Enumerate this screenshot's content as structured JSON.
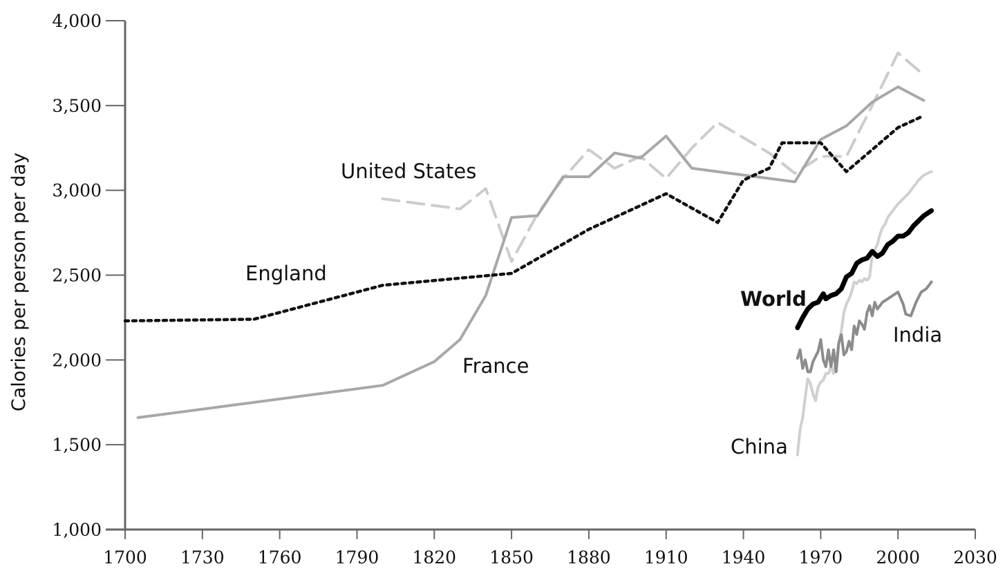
{
  "chart_data": {
    "type": "line",
    "title": "",
    "xlabel": "",
    "ylabel": "Calories per person per day",
    "xlim": [
      1700,
      2030
    ],
    "ylim": [
      1000,
      4000
    ],
    "x_ticks": [
      1700,
      1730,
      1760,
      1790,
      1820,
      1850,
      1880,
      1910,
      1940,
      1970,
      2000,
      2030
    ],
    "y_ticks": [
      1000,
      1500,
      2000,
      2500,
      3000,
      3500,
      4000
    ],
    "y_tick_labels": [
      "1,000",
      "1,500",
      "2,000",
      "2,500",
      "3,000",
      "3,500",
      "4,000"
    ],
    "grid": false,
    "legend": "none",
    "series": [
      {
        "name": "England",
        "color": "#111111",
        "style": "dotted",
        "points": [
          [
            1700,
            2230
          ],
          [
            1750,
            2240
          ],
          [
            1800,
            2440
          ],
          [
            1850,
            2510
          ],
          [
            1880,
            2770
          ],
          [
            1910,
            2980
          ],
          [
            1930,
            2810
          ],
          [
            1940,
            3060
          ],
          [
            1950,
            3130
          ],
          [
            1955,
            3280
          ],
          [
            1965,
            3280
          ],
          [
            1970,
            3280
          ],
          [
            1980,
            3110
          ],
          [
            2000,
            3370
          ],
          [
            2010,
            3440
          ]
        ]
      },
      {
        "name": "France",
        "color": "#a8a8a8",
        "style": "solid",
        "points": [
          [
            1705,
            1660
          ],
          [
            1800,
            1850
          ],
          [
            1820,
            1990
          ],
          [
            1830,
            2120
          ],
          [
            1840,
            2380
          ],
          [
            1850,
            2840
          ],
          [
            1860,
            2850
          ],
          [
            1870,
            3080
          ],
          [
            1880,
            3080
          ],
          [
            1890,
            3220
          ],
          [
            1900,
            3190
          ],
          [
            1910,
            3320
          ],
          [
            1920,
            3130
          ],
          [
            1960,
            3050
          ],
          [
            1970,
            3300
          ],
          [
            1980,
            3380
          ],
          [
            1990,
            3520
          ],
          [
            2000,
            3610
          ],
          [
            2010,
            3530
          ]
        ]
      },
      {
        "name": "United States",
        "color": "#cccccc",
        "style": "dashed",
        "points": [
          [
            1800,
            2950
          ],
          [
            1830,
            2890
          ],
          [
            1840,
            3010
          ],
          [
            1850,
            2580
          ],
          [
            1860,
            2860
          ],
          [
            1870,
            3070
          ],
          [
            1880,
            3240
          ],
          [
            1890,
            3130
          ],
          [
            1900,
            3200
          ],
          [
            1910,
            3070
          ],
          [
            1920,
            3250
          ],
          [
            1930,
            3400
          ],
          [
            1950,
            3220
          ],
          [
            1960,
            3100
          ],
          [
            1970,
            3200
          ],
          [
            1980,
            3200
          ],
          [
            1990,
            3500
          ],
          [
            2000,
            3810
          ],
          [
            2010,
            3680
          ]
        ]
      },
      {
        "name": "World",
        "color": "#000000",
        "style": "solid-thick",
        "points": [
          [
            1961,
            2190
          ],
          [
            1963,
            2250
          ],
          [
            1965,
            2300
          ],
          [
            1967,
            2330
          ],
          [
            1969,
            2340
          ],
          [
            1971,
            2390
          ],
          [
            1972,
            2360
          ],
          [
            1974,
            2380
          ],
          [
            1976,
            2390
          ],
          [
            1978,
            2420
          ],
          [
            1980,
            2490
          ],
          [
            1982,
            2510
          ],
          [
            1984,
            2570
          ],
          [
            1986,
            2590
          ],
          [
            1988,
            2600
          ],
          [
            1990,
            2640
          ],
          [
            1992,
            2610
          ],
          [
            1994,
            2630
          ],
          [
            1996,
            2680
          ],
          [
            1998,
            2700
          ],
          [
            2000,
            2730
          ],
          [
            2002,
            2730
          ],
          [
            2004,
            2750
          ],
          [
            2006,
            2790
          ],
          [
            2008,
            2820
          ],
          [
            2010,
            2850
          ],
          [
            2013,
            2880
          ]
        ]
      },
      {
        "name": "India",
        "color": "#8c8c8c",
        "style": "solid",
        "points": [
          [
            1961,
            2010
          ],
          [
            1962,
            2060
          ],
          [
            1963,
            1950
          ],
          [
            1964,
            2000
          ],
          [
            1965,
            1930
          ],
          [
            1966,
            1930
          ],
          [
            1967,
            1990
          ],
          [
            1968,
            2020
          ],
          [
            1969,
            2050
          ],
          [
            1970,
            2120
          ],
          [
            1971,
            2000
          ],
          [
            1972,
            1960
          ],
          [
            1973,
            2060
          ],
          [
            1974,
            1960
          ],
          [
            1975,
            2060
          ],
          [
            1976,
            1930
          ],
          [
            1977,
            2100
          ],
          [
            1978,
            2150
          ],
          [
            1979,
            2030
          ],
          [
            1980,
            2050
          ],
          [
            1981,
            2110
          ],
          [
            1982,
            2060
          ],
          [
            1983,
            2200
          ],
          [
            1984,
            2150
          ],
          [
            1985,
            2230
          ],
          [
            1986,
            2210
          ],
          [
            1987,
            2180
          ],
          [
            1988,
            2280
          ],
          [
            1989,
            2320
          ],
          [
            1990,
            2260
          ],
          [
            1991,
            2340
          ],
          [
            1992,
            2300
          ],
          [
            1994,
            2340
          ],
          [
            1996,
            2360
          ],
          [
            1998,
            2380
          ],
          [
            2000,
            2400
          ],
          [
            2002,
            2330
          ],
          [
            2003,
            2270
          ],
          [
            2005,
            2260
          ],
          [
            2007,
            2340
          ],
          [
            2009,
            2400
          ],
          [
            2011,
            2420
          ],
          [
            2013,
            2460
          ]
        ]
      },
      {
        "name": "China",
        "color": "#d0d0d0",
        "style": "solid",
        "points": [
          [
            1961,
            1440
          ],
          [
            1962,
            1590
          ],
          [
            1963,
            1660
          ],
          [
            1964,
            1780
          ],
          [
            1965,
            1890
          ],
          [
            1966,
            1860
          ],
          [
            1967,
            1800
          ],
          [
            1968,
            1760
          ],
          [
            1969,
            1840
          ],
          [
            1970,
            1870
          ],
          [
            1971,
            1880
          ],
          [
            1972,
            1920
          ],
          [
            1973,
            1920
          ],
          [
            1974,
            1960
          ],
          [
            1975,
            1920
          ],
          [
            1976,
            2000
          ],
          [
            1977,
            2100
          ],
          [
            1978,
            2170
          ],
          [
            1979,
            2280
          ],
          [
            1980,
            2330
          ],
          [
            1981,
            2360
          ],
          [
            1982,
            2400
          ],
          [
            1983,
            2460
          ],
          [
            1984,
            2450
          ],
          [
            1985,
            2470
          ],
          [
            1986,
            2460
          ],
          [
            1987,
            2480
          ],
          [
            1988,
            2470
          ],
          [
            1989,
            2490
          ],
          [
            1990,
            2620
          ],
          [
            1991,
            2650
          ],
          [
            1992,
            2680
          ],
          [
            1993,
            2740
          ],
          [
            1994,
            2780
          ],
          [
            1995,
            2800
          ],
          [
            1996,
            2840
          ],
          [
            1998,
            2880
          ],
          [
            2000,
            2920
          ],
          [
            2002,
            2950
          ],
          [
            2004,
            2980
          ],
          [
            2006,
            3020
          ],
          [
            2008,
            3060
          ],
          [
            2010,
            3090
          ],
          [
            2013,
            3110
          ]
        ]
      }
    ],
    "annotations": [
      {
        "text": "United States",
        "series": "United States"
      },
      {
        "text": "England",
        "series": "England"
      },
      {
        "text": "France",
        "series": "France"
      },
      {
        "text": "World",
        "series": "World",
        "bold": true
      },
      {
        "text": "India",
        "series": "India"
      },
      {
        "text": "China",
        "series": "China"
      }
    ]
  }
}
